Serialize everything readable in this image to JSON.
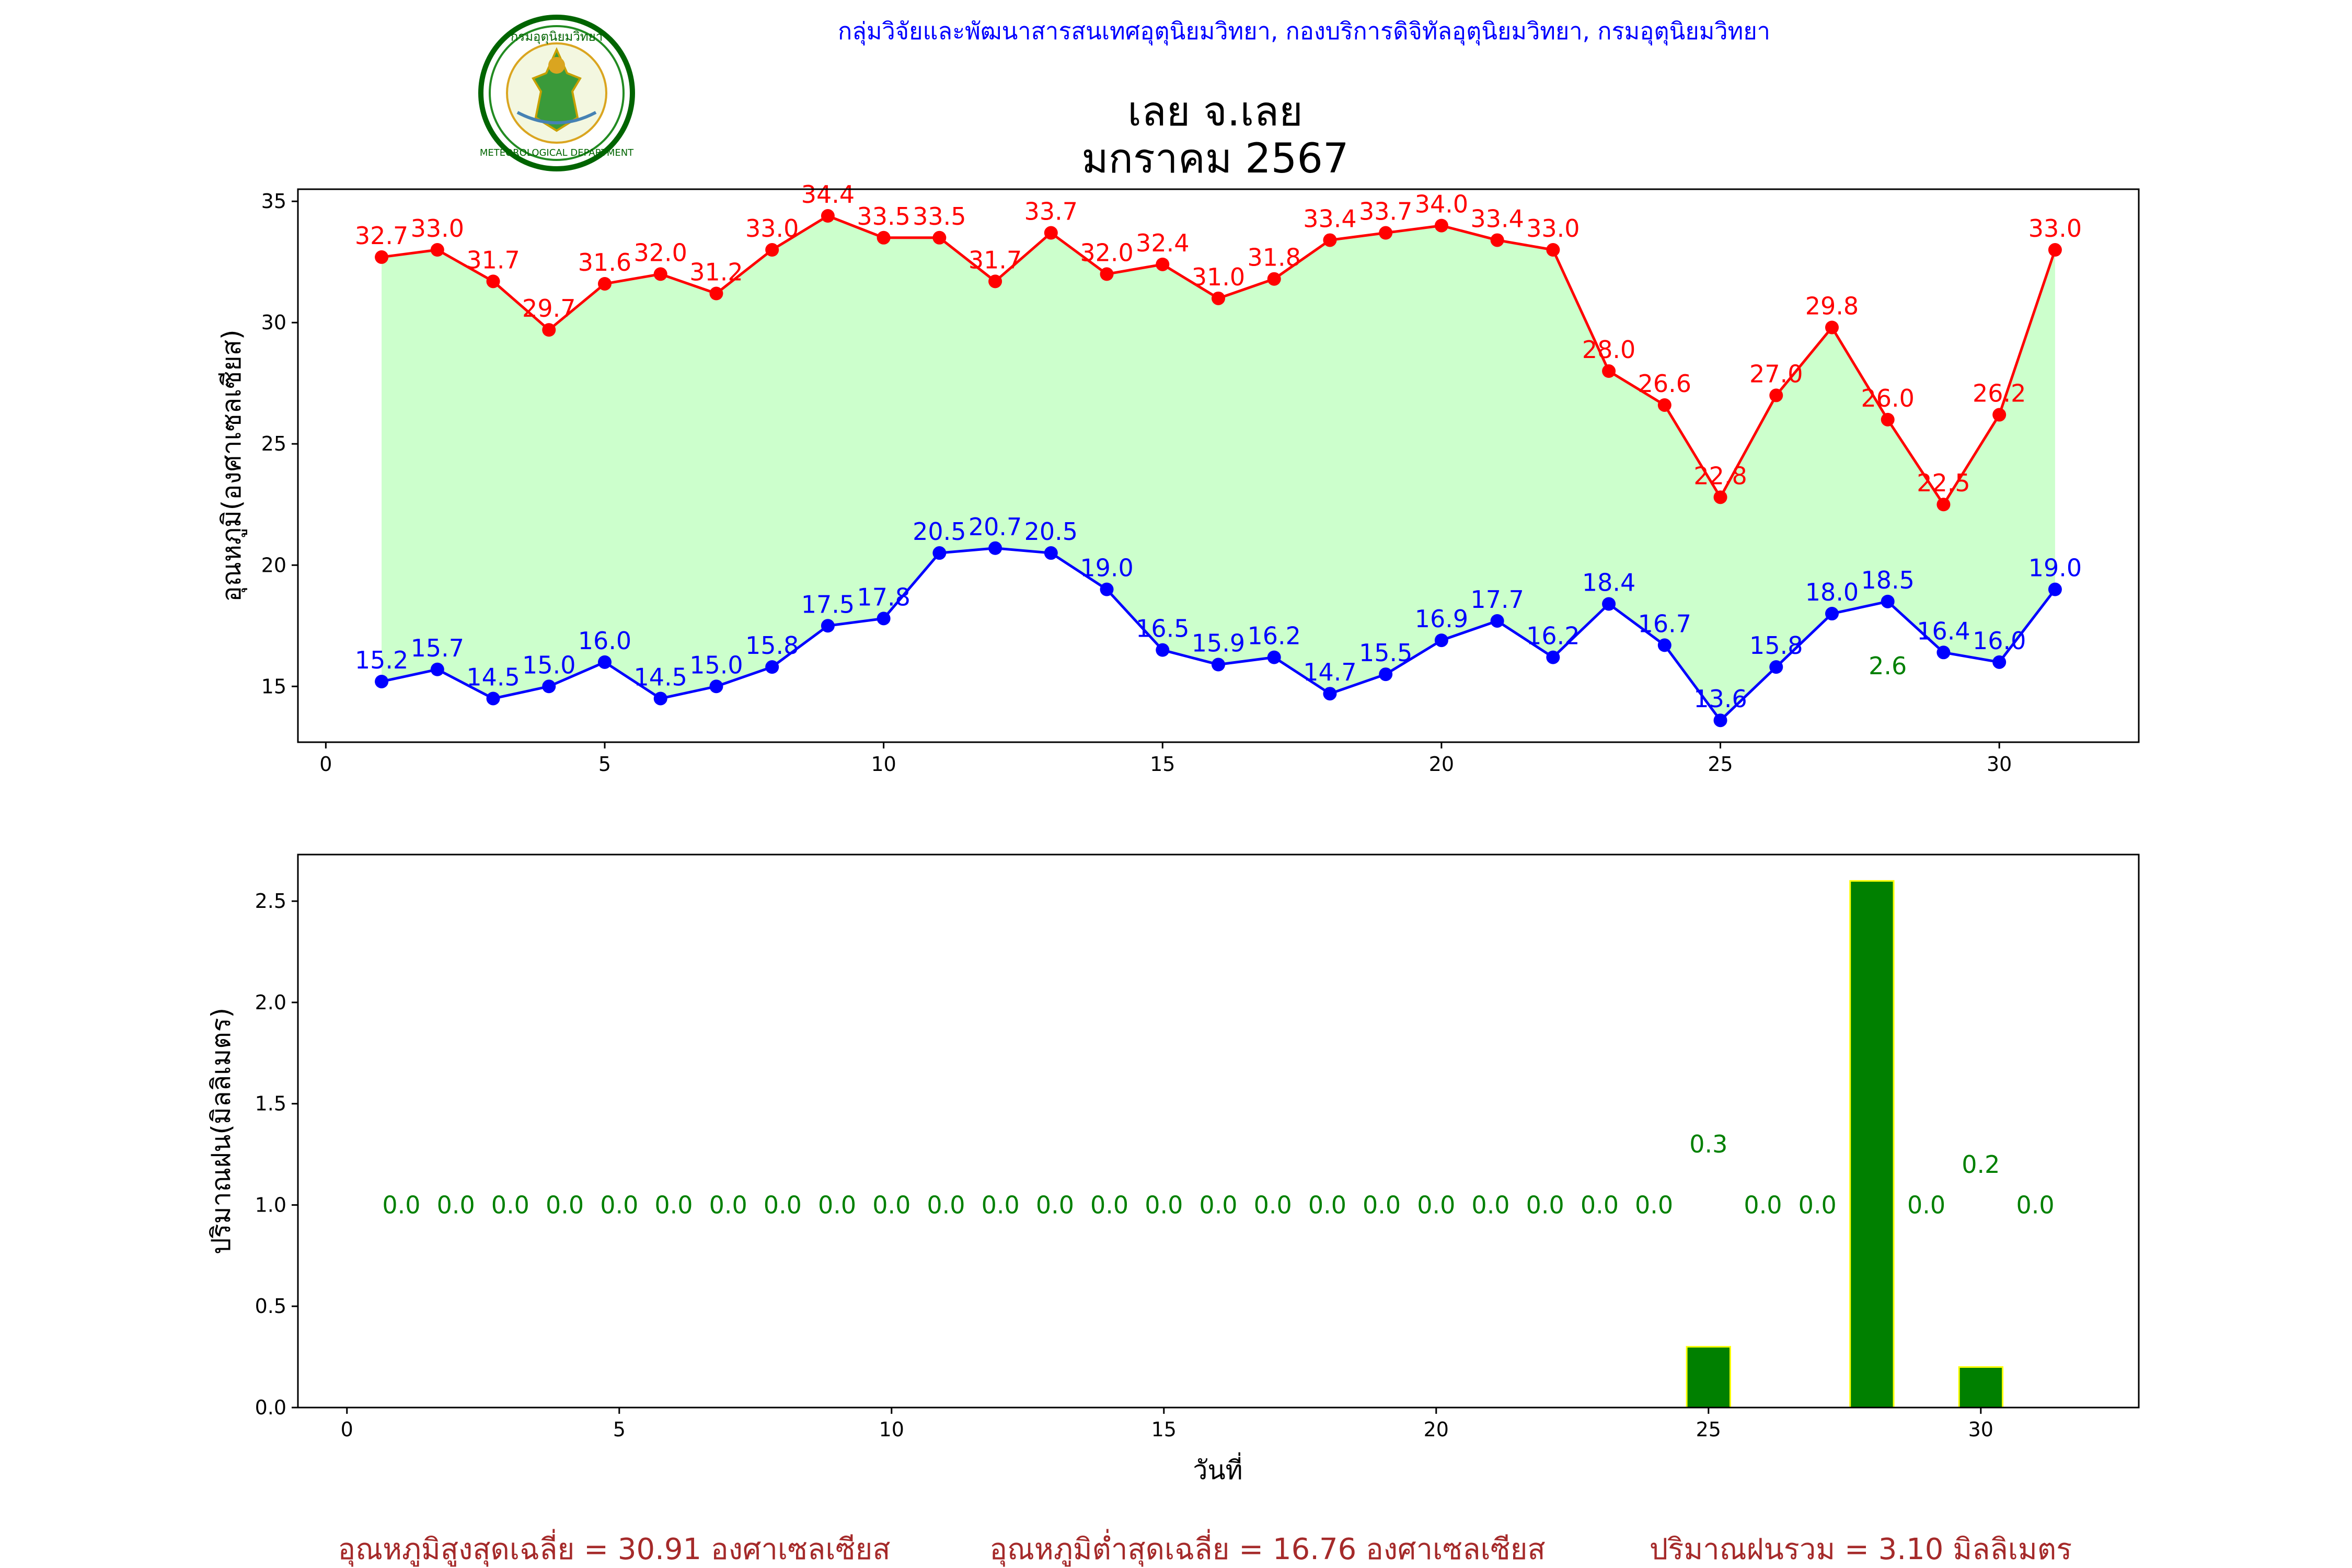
{
  "header": {
    "agency": "กลุ่มวิจัยและพัฒนาสารสนเทศอุตุนิยมวิทยา, กองบริการดิจิทัลอุตุนิยมวิทยา, กรมอุตุนิยมวิทยา",
    "logo_text_top": "กรมอุตุนิยมวิทยา",
    "logo_text_bottom": "METEOROLOGICAL DEPARTMENT",
    "title_line1": "เลย จ.เลย",
    "title_line2": "มกราคม 2567"
  },
  "colors": {
    "max_line": "#ff0000",
    "min_line": "#0000ff",
    "fill": "#ccffcc",
    "rain_bar": "#008000",
    "rain_edge": "#ffff00",
    "rain_label": "#008000",
    "footer": "#a52a2a",
    "agency": "#0000ff"
  },
  "chart_data": [
    {
      "type": "line",
      "x": [
        1,
        2,
        3,
        4,
        5,
        6,
        7,
        8,
        9,
        10,
        11,
        12,
        13,
        14,
        15,
        16,
        17,
        18,
        19,
        20,
        21,
        22,
        23,
        24,
        25,
        26,
        27,
        28,
        29,
        30,
        31
      ],
      "series": [
        {
          "values": [
            32.7,
            33.0,
            31.7,
            29.7,
            31.6,
            32.0,
            31.2,
            33.0,
            34.4,
            33.5,
            33.5,
            31.7,
            33.7,
            32.0,
            32.4,
            31.0,
            31.8,
            33.4,
            33.7,
            34.0,
            33.4,
            33.0,
            28.0,
            26.6,
            22.8,
            27.0,
            29.8,
            26.0,
            22.5,
            26.2,
            33.0
          ],
          "color": "#ff0000"
        },
        {
          "values": [
            15.2,
            15.7,
            14.5,
            15.0,
            16.0,
            14.5,
            15.0,
            15.8,
            17.5,
            17.8,
            20.5,
            20.7,
            20.5,
            19.0,
            16.5,
            15.9,
            16.2,
            14.7,
            15.5,
            16.9,
            17.7,
            16.2,
            18.4,
            16.7,
            13.6,
            15.8,
            18.0,
            18.5,
            16.4,
            16.0,
            19.0
          ],
          "color": "#0000ff"
        }
      ],
      "xticks": [
        0,
        5,
        10,
        15,
        20,
        25,
        30
      ],
      "yticks": [
        15,
        20,
        25,
        30,
        35
      ],
      "xlim": [
        -0.5,
        32.5
      ],
      "ylim": [
        12.7,
        35.5
      ],
      "ylabel": "อุณหภูมิ(องศาเซลเซียส)",
      "fill_between": true,
      "annotations": [
        {
          "text": "2.6",
          "x": 28,
          "y": 15.5,
          "color": "#008000"
        }
      ]
    },
    {
      "type": "bar",
      "x": [
        1,
        2,
        3,
        4,
        5,
        6,
        7,
        8,
        9,
        10,
        11,
        12,
        13,
        14,
        15,
        16,
        17,
        18,
        19,
        20,
        21,
        22,
        23,
        24,
        25,
        26,
        27,
        28,
        29,
        30,
        31
      ],
      "values": [
        0.0,
        0.0,
        0.0,
        0.0,
        0.0,
        0.0,
        0.0,
        0.0,
        0.0,
        0.0,
        0.0,
        0.0,
        0.0,
        0.0,
        0.0,
        0.0,
        0.0,
        0.0,
        0.0,
        0.0,
        0.0,
        0.0,
        0.0,
        0.0,
        0.3,
        0.0,
        0.0,
        2.6,
        0.0,
        0.2,
        0.0
      ],
      "labels": [
        "0.0",
        "0.0",
        "0.0",
        "0.0",
        "0.0",
        "0.0",
        "0.0",
        "0.0",
        "0.0",
        "0.0",
        "0.0",
        "0.0",
        "0.0",
        "0.0",
        "0.0",
        "0.0",
        "0.0",
        "0.0",
        "0.0",
        "0.0",
        "0.0",
        "0.0",
        "0.0",
        "0.0",
        "0.3",
        "0.0",
        "0.0",
        "",
        "0.0",
        "0.2",
        "0.0"
      ],
      "xticks": [
        0,
        5,
        10,
        15,
        20,
        25,
        30
      ],
      "yticks": [
        0.0,
        0.5,
        1.0,
        1.5,
        2.0,
        2.5
      ],
      "ytick_labels": [
        "0.0",
        "0.5",
        "1.0",
        "1.5",
        "2.0",
        "2.5"
      ],
      "xlim": [
        -0.9,
        32.9
      ],
      "ylim": [
        0,
        2.73
      ],
      "xlabel": "วันที่",
      "ylabel": "ปริมาณฝน(มิลลิเมตร)",
      "label_y": 1.0
    }
  ],
  "footer": {
    "avg_max": "อุณหภูมิสูงสุดเฉลี่ย = 30.91 องศาเซลเซียส",
    "avg_min": "อุณหภูมิต่ำสุดเฉลี่ย = 16.76 องศาเซลเซียส",
    "total_rain": "ปริมาณฝนรวม = 3.10 มิลลิเมตร"
  }
}
